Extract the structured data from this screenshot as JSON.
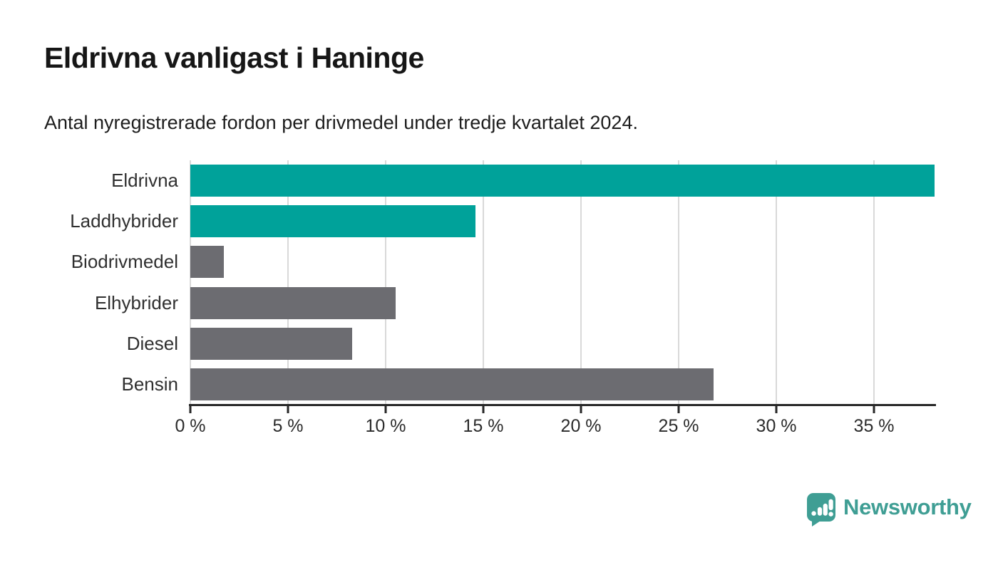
{
  "chart_data": {
    "type": "bar",
    "orientation": "horizontal",
    "title": "Eldrivna vanligast i Haninge",
    "subtitle": "Antal nyregistrerade fordon per drivmedel under tredje kvartalet 2024.",
    "categories": [
      "Eldrivna",
      "Laddhybrider",
      "Biodrivmedel",
      "Elhybrider",
      "Diesel",
      "Bensin"
    ],
    "values": [
      38.1,
      14.6,
      1.7,
      10.5,
      8.3,
      26.8
    ],
    "unit": "%",
    "bar_colors": [
      "#00a29a",
      "#00a29a",
      "#6c6c71",
      "#6c6c71",
      "#6c6c71",
      "#6c6c71"
    ],
    "highlight_color": "#00a29a",
    "default_color": "#6c6c71",
    "xlim": [
      0,
      38.1
    ],
    "x_ticks": [
      0,
      5,
      10,
      15,
      20,
      25,
      30,
      35
    ],
    "x_tick_labels": [
      "0 %",
      "5 %",
      "10 %",
      "15 %",
      "20 %",
      "25 %",
      "30 %",
      "35 %"
    ],
    "grid": true,
    "gridline_color": "#d9d9d9",
    "legend": false
  },
  "branding": {
    "logo_text": "Newsworthy",
    "logo_color": "#3f9e94",
    "logo_icon": "newsworthy-speech-bubble-bar-chart-icon"
  }
}
